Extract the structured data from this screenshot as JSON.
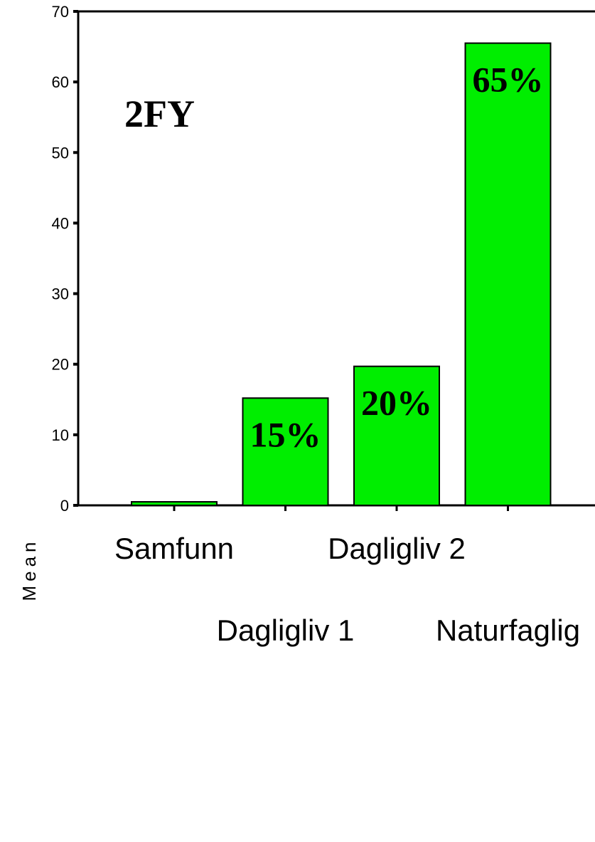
{
  "chart_data": {
    "type": "bar",
    "title": "2FY",
    "xlabel": "",
    "ylabel": "Mean",
    "ylim": [
      0,
      70
    ],
    "yticks": [
      0,
      10,
      20,
      30,
      40,
      50,
      60,
      70
    ],
    "categories": [
      "Samfunn",
      "Dagligliv 1",
      "Dagligliv 2",
      "Naturfaglig"
    ],
    "values": [
      0.5,
      15.2,
      19.7,
      65.5
    ],
    "data_labels": [
      "",
      "15%",
      "20%",
      "65%"
    ],
    "bar_color": "#00ee00",
    "grid": false
  }
}
